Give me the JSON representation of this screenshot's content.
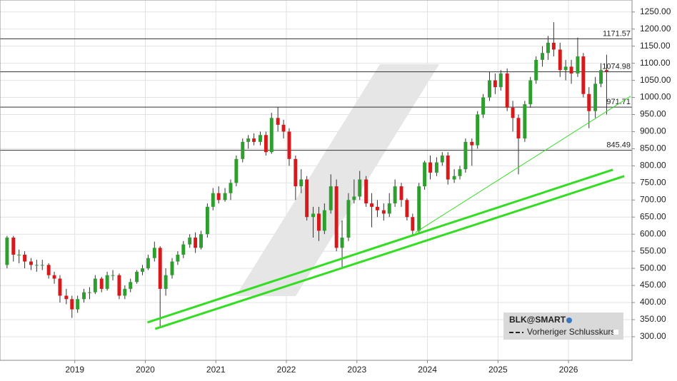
{
  "chart_data": {
    "type": "candlestick",
    "x": [
      2018.04,
      2018.13,
      2018.21,
      2018.29,
      2018.38,
      2018.46,
      2018.54,
      2018.63,
      2018.71,
      2018.79,
      2018.88,
      2018.96,
      2019.04,
      2019.13,
      2019.21,
      2019.29,
      2019.38,
      2019.46,
      2019.54,
      2019.63,
      2019.71,
      2019.79,
      2019.88,
      2019.96,
      2020.04,
      2020.13,
      2020.21,
      2020.29,
      2020.38,
      2020.46,
      2020.54,
      2020.63,
      2020.71,
      2020.79,
      2020.88,
      2020.96,
      2021.04,
      2021.13,
      2021.21,
      2021.29,
      2021.38,
      2021.46,
      2021.54,
      2021.63,
      2021.71,
      2021.79,
      2021.88,
      2021.96,
      2022.04,
      2022.13,
      2022.21,
      2022.29,
      2022.38,
      2022.46,
      2022.54,
      2022.63,
      2022.71,
      2022.79,
      2022.88,
      2022.96,
      2023.04,
      2023.13,
      2023.21,
      2023.29,
      2023.38,
      2023.46,
      2023.54,
      2023.63,
      2023.71,
      2023.79,
      2023.88,
      2023.96,
      2024.04,
      2024.13,
      2024.21,
      2024.29,
      2024.38,
      2024.46,
      2024.54,
      2024.63,
      2024.71,
      2024.79,
      2024.88,
      2024.96,
      2025.04,
      2025.13,
      2025.21,
      2025.29,
      2025.38,
      2025.46,
      2025.54,
      2025.63,
      2025.71,
      2025.79,
      2025.88,
      2025.96,
      2026.04,
      2026.13,
      2026.21,
      2026.29,
      2026.38,
      2026.46,
      2026.54
    ],
    "open": [
      510,
      590,
      540,
      540,
      520,
      510,
      510,
      510,
      480,
      470,
      420,
      410,
      380,
      410,
      430,
      430,
      470,
      440,
      480,
      480,
      420,
      440,
      460,
      490,
      500,
      530,
      560,
      440,
      480,
      520,
      540,
      570,
      590,
      560,
      600,
      680,
      720,
      700,
      720,
      750,
      820,
      870,
      880,
      870,
      890,
      840,
      940,
      920,
      900,
      820,
      740,
      760,
      650,
      660,
      610,
      670,
      740,
      560,
      590,
      700,
      710,
      760,
      690,
      680,
      670,
      660,
      690,
      740,
      700,
      650,
      610,
      740,
      810,
      780,
      810,
      830,
      760,
      770,
      790,
      870,
      860,
      950,
      1000,
      1050,
      1030,
      1070,
      970,
      940,
      880,
      980,
      1050,
      1110,
      1130,
      1160,
      1140,
      1080,
      1090,
      1070,
      1120,
      1010,
      960,
      1040,
      1080
    ],
    "high": [
      595,
      595,
      555,
      550,
      530,
      525,
      525,
      515,
      490,
      480,
      440,
      420,
      420,
      440,
      445,
      480,
      475,
      490,
      495,
      485,
      450,
      470,
      495,
      510,
      540,
      578,
      565,
      500,
      530,
      550,
      580,
      600,
      605,
      610,
      690,
      735,
      740,
      735,
      760,
      830,
      880,
      890,
      895,
      900,
      900,
      955,
      973,
      935,
      910,
      830,
      790,
      770,
      680,
      680,
      690,
      775,
      760,
      640,
      720,
      760,
      785,
      770,
      720,
      700,
      690,
      720,
      760,
      750,
      705,
      660,
      750,
      815,
      830,
      825,
      840,
      840,
      790,
      800,
      880,
      880,
      960,
      1010,
      1075,
      1070,
      1080,
      1085,
      990,
      950,
      990,
      1060,
      1120,
      1150,
      1180,
      1220,
      1160,
      1110,
      1110,
      1175,
      1130,
      1030,
      1060,
      1100,
      1125
    ],
    "low": [
      500,
      520,
      515,
      500,
      495,
      490,
      495,
      470,
      455,
      400,
      395,
      355,
      370,
      400,
      410,
      425,
      430,
      435,
      465,
      410,
      410,
      430,
      455,
      480,
      495,
      520,
      325,
      420,
      470,
      510,
      530,
      560,
      545,
      555,
      590,
      670,
      690,
      695,
      700,
      740,
      810,
      850,
      860,
      860,
      830,
      835,
      900,
      880,
      800,
      700,
      720,
      640,
      590,
      580,
      600,
      660,
      550,
      503,
      580,
      690,
      700,
      680,
      620,
      650,
      640,
      650,
      680,
      680,
      640,
      597,
      605,
      730,
      760,
      770,
      800,
      745,
      750,
      760,
      780,
      800,
      850,
      940,
      990,
      1010,
      1020,
      960,
      900,
      775,
      870,
      970,
      1040,
      1090,
      1110,
      1120,
      1060,
      1050,
      1040,
      1060,
      1000,
      910,
      940,
      1030,
      950
    ],
    "close": [
      590,
      540,
      540,
      520,
      510,
      510,
      510,
      480,
      470,
      420,
      410,
      380,
      410,
      430,
      430,
      470,
      440,
      480,
      480,
      420,
      440,
      460,
      490,
      500,
      530,
      560,
      440,
      480,
      520,
      540,
      570,
      590,
      560,
      600,
      680,
      720,
      700,
      720,
      750,
      820,
      870,
      880,
      870,
      890,
      840,
      940,
      920,
      900,
      820,
      740,
      760,
      650,
      660,
      610,
      670,
      740,
      560,
      590,
      700,
      710,
      760,
      690,
      680,
      670,
      660,
      690,
      740,
      700,
      650,
      610,
      740,
      810,
      780,
      810,
      830,
      760,
      770,
      790,
      870,
      860,
      950,
      1000,
      1050,
      1030,
      1070,
      970,
      940,
      880,
      980,
      1050,
      1110,
      1130,
      1160,
      1140,
      1080,
      1090,
      1070,
      1120,
      1010,
      960,
      1040,
      1080,
      1075
    ],
    "up_color": "#2e9e2e",
    "down_color": "#d7191c",
    "xlim": [
      2017.94,
      2026.9
    ],
    "xticks": [
      2019,
      2020,
      2021,
      2022,
      2023,
      2024,
      2025,
      2026
    ],
    "ylim": [
      231,
      1285
    ],
    "yticks": [
      {
        "value": 300,
        "label": "300.00"
      },
      {
        "value": 350,
        "label": "350.00"
      },
      {
        "value": 400,
        "label": "400.00"
      },
      {
        "value": 450,
        "label": "450.00"
      },
      {
        "value": 500,
        "label": "500.00"
      },
      {
        "value": 550,
        "label": "550.00"
      },
      {
        "value": 600,
        "label": "600.00"
      },
      {
        "value": 650,
        "label": "650.00"
      },
      {
        "value": 700,
        "label": "700.00"
      },
      {
        "value": 750,
        "label": "750.00"
      },
      {
        "value": 800,
        "label": "800.00"
      },
      {
        "value": 850,
        "label": "850.00"
      },
      {
        "value": 900,
        "label": "900.00"
      },
      {
        "value": 950,
        "label": "950.00"
      },
      {
        "value": 1000,
        "label": "1000.00"
      },
      {
        "value": 1050,
        "label": "1050.00"
      },
      {
        "value": 1100,
        "label": "1100.00"
      },
      {
        "value": 1150,
        "label": "1150.00"
      },
      {
        "value": 1200,
        "label": "1200.00"
      },
      {
        "value": 1250,
        "label": "1250.00"
      }
    ],
    "grid": true,
    "levels": [
      1171.57,
      1074.98,
      971.71,
      845.49
    ],
    "trendlines": [
      {
        "x": [
          2020.03,
          2026.63
        ],
        "y": [
          341.8,
          788.6
        ],
        "color": "#33dd22",
        "width": 3
      },
      {
        "x": [
          2020.14,
          2026.79
        ],
        "y": [
          323,
          769.8
        ],
        "color": "#33dd22",
        "width": 3
      },
      {
        "x": [
          2023.83,
          2026.88
        ],
        "y": [
          605,
          1003.6
        ],
        "color": "#33dd22",
        "width": 1
      }
    ],
    "legend": {
      "symbol": "BLK@SMART",
      "entry": "Vorheriger Schlusskurs"
    }
  }
}
